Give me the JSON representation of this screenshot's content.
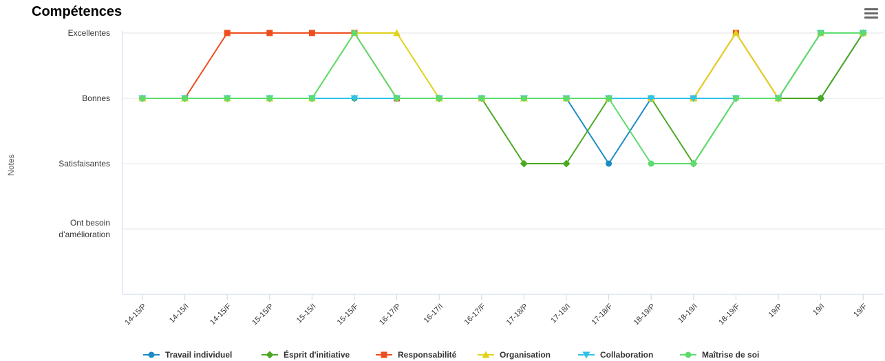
{
  "chart_data": {
    "type": "line",
    "title": "Compétences",
    "xlabel": "",
    "ylabel": "Notes",
    "categories": [
      "14-15/P",
      "14-15/I",
      "14-15/F",
      "15-15/P",
      "15-15/I",
      "15-15/F",
      "16-17/P",
      "16-17/I",
      "16-17/F",
      "17-18/P",
      "17-18/I",
      "17-18/F",
      "18-19/P",
      "18-19/I",
      "18-19/F",
      "19/P",
      "19/I",
      "19/F"
    ],
    "y_levels": [
      "Ont besoin d'amélioration",
      "Satisfaisantes",
      "Bonnes",
      "Excellentes"
    ],
    "ylim": [
      0,
      4
    ],
    "legend_position": "bottom",
    "series": [
      {
        "name": "Travail individuel",
        "color": "#1b8bc4",
        "marker": "circle",
        "values": [
          3,
          3,
          3,
          3,
          3,
          3,
          3,
          3,
          3,
          3,
          3,
          2,
          3,
          3,
          3,
          3,
          3,
          4
        ]
      },
      {
        "name": "Ésprit d'initiative",
        "color": "#4ba81f",
        "marker": "diamond",
        "values": [
          3,
          3,
          3,
          3,
          3,
          3,
          3,
          3,
          3,
          2,
          2,
          3,
          3,
          2,
          3,
          3,
          3,
          4
        ]
      },
      {
        "name": "Responsabilité",
        "color": "#ee4e1e",
        "marker": "square",
        "values": [
          3,
          3,
          4,
          4,
          4,
          4,
          3,
          3,
          3,
          3,
          3,
          3,
          3,
          3,
          4,
          3,
          4,
          4
        ]
      },
      {
        "name": "Organisation",
        "color": "#e0d21a",
        "marker": "triangle",
        "values": [
          3,
          3,
          3,
          3,
          3,
          4,
          4,
          3,
          3,
          3,
          3,
          3,
          3,
          3,
          4,
          3,
          4,
          4
        ]
      },
      {
        "name": "Collaboration",
        "color": "#2ec3e6",
        "marker": "triangle-down",
        "values": [
          3,
          3,
          3,
          3,
          3,
          3,
          3,
          3,
          3,
          3,
          3,
          3,
          3,
          3,
          3,
          3,
          4,
          4
        ]
      },
      {
        "name": "Maîtrise de soi",
        "color": "#5ddc6e",
        "marker": "circle",
        "values": [
          3,
          3,
          3,
          3,
          3,
          4,
          3,
          3,
          3,
          3,
          3,
          3,
          2,
          2,
          3,
          3,
          4,
          4
        ]
      }
    ],
    "grid": true
  }
}
